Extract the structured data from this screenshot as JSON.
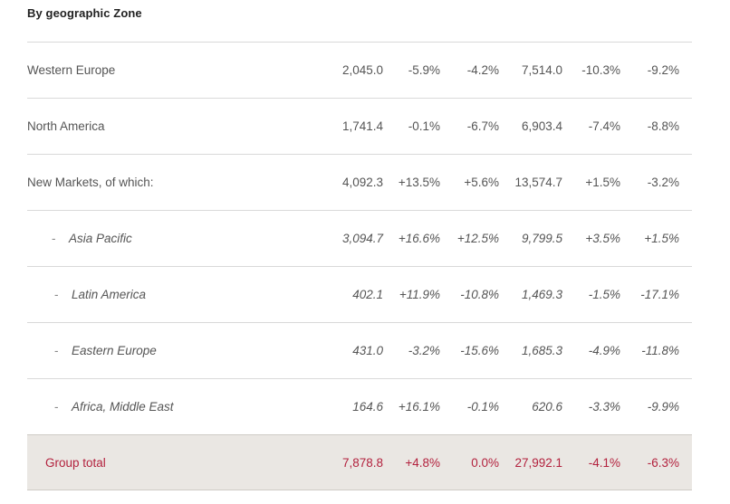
{
  "title": "By geographic Zone",
  "rows": [
    {
      "label": "Western Europe",
      "values": [
        "2,045.0",
        "-5.9%",
        "-4.2%",
        "7,514.0",
        "-10.3%",
        "-9.2%"
      ]
    },
    {
      "label": "North America",
      "values": [
        "1,741.4",
        "-0.1%",
        "-6.7%",
        "6,903.4",
        "-7.4%",
        "-8.8%"
      ]
    },
    {
      "label": "New Markets, of which:",
      "values": [
        "4,092.3",
        "+13.5%",
        "+5.6%",
        "13,574.7",
        "+1.5%",
        "-3.2%"
      ]
    },
    {
      "dash": "-",
      "label": "Asia Pacific",
      "values": [
        "3,094.7",
        "+16.6%",
        "+12.5%",
        "9,799.5",
        "+3.5%",
        "+1.5%"
      ]
    },
    {
      "dash": "-",
      "label": "Latin America",
      "values": [
        "402.1",
        "+11.9%",
        "-10.8%",
        "1,469.3",
        "-1.5%",
        "-17.1%"
      ]
    },
    {
      "dash": "-",
      "label": "Eastern Europe",
      "values": [
        "431.0",
        "-3.2%",
        "-15.6%",
        "1,685.3",
        "-4.9%",
        "-11.8%"
      ]
    },
    {
      "dash": "-",
      "label": "Africa, Middle East",
      "values": [
        "164.6",
        "+16.1%",
        "-0.1%",
        "620.6",
        "-3.3%",
        "-9.9%"
      ]
    }
  ],
  "total": {
    "label": "Group total",
    "values": [
      "7,878.8",
      "+4.8%",
      "0.0%",
      "27,992.1",
      "-4.1%",
      "-6.3%"
    ]
  },
  "colors": {
    "total_text": "#b3223e",
    "total_background": "#eae7e3",
    "rule": "#d9d9d9"
  }
}
